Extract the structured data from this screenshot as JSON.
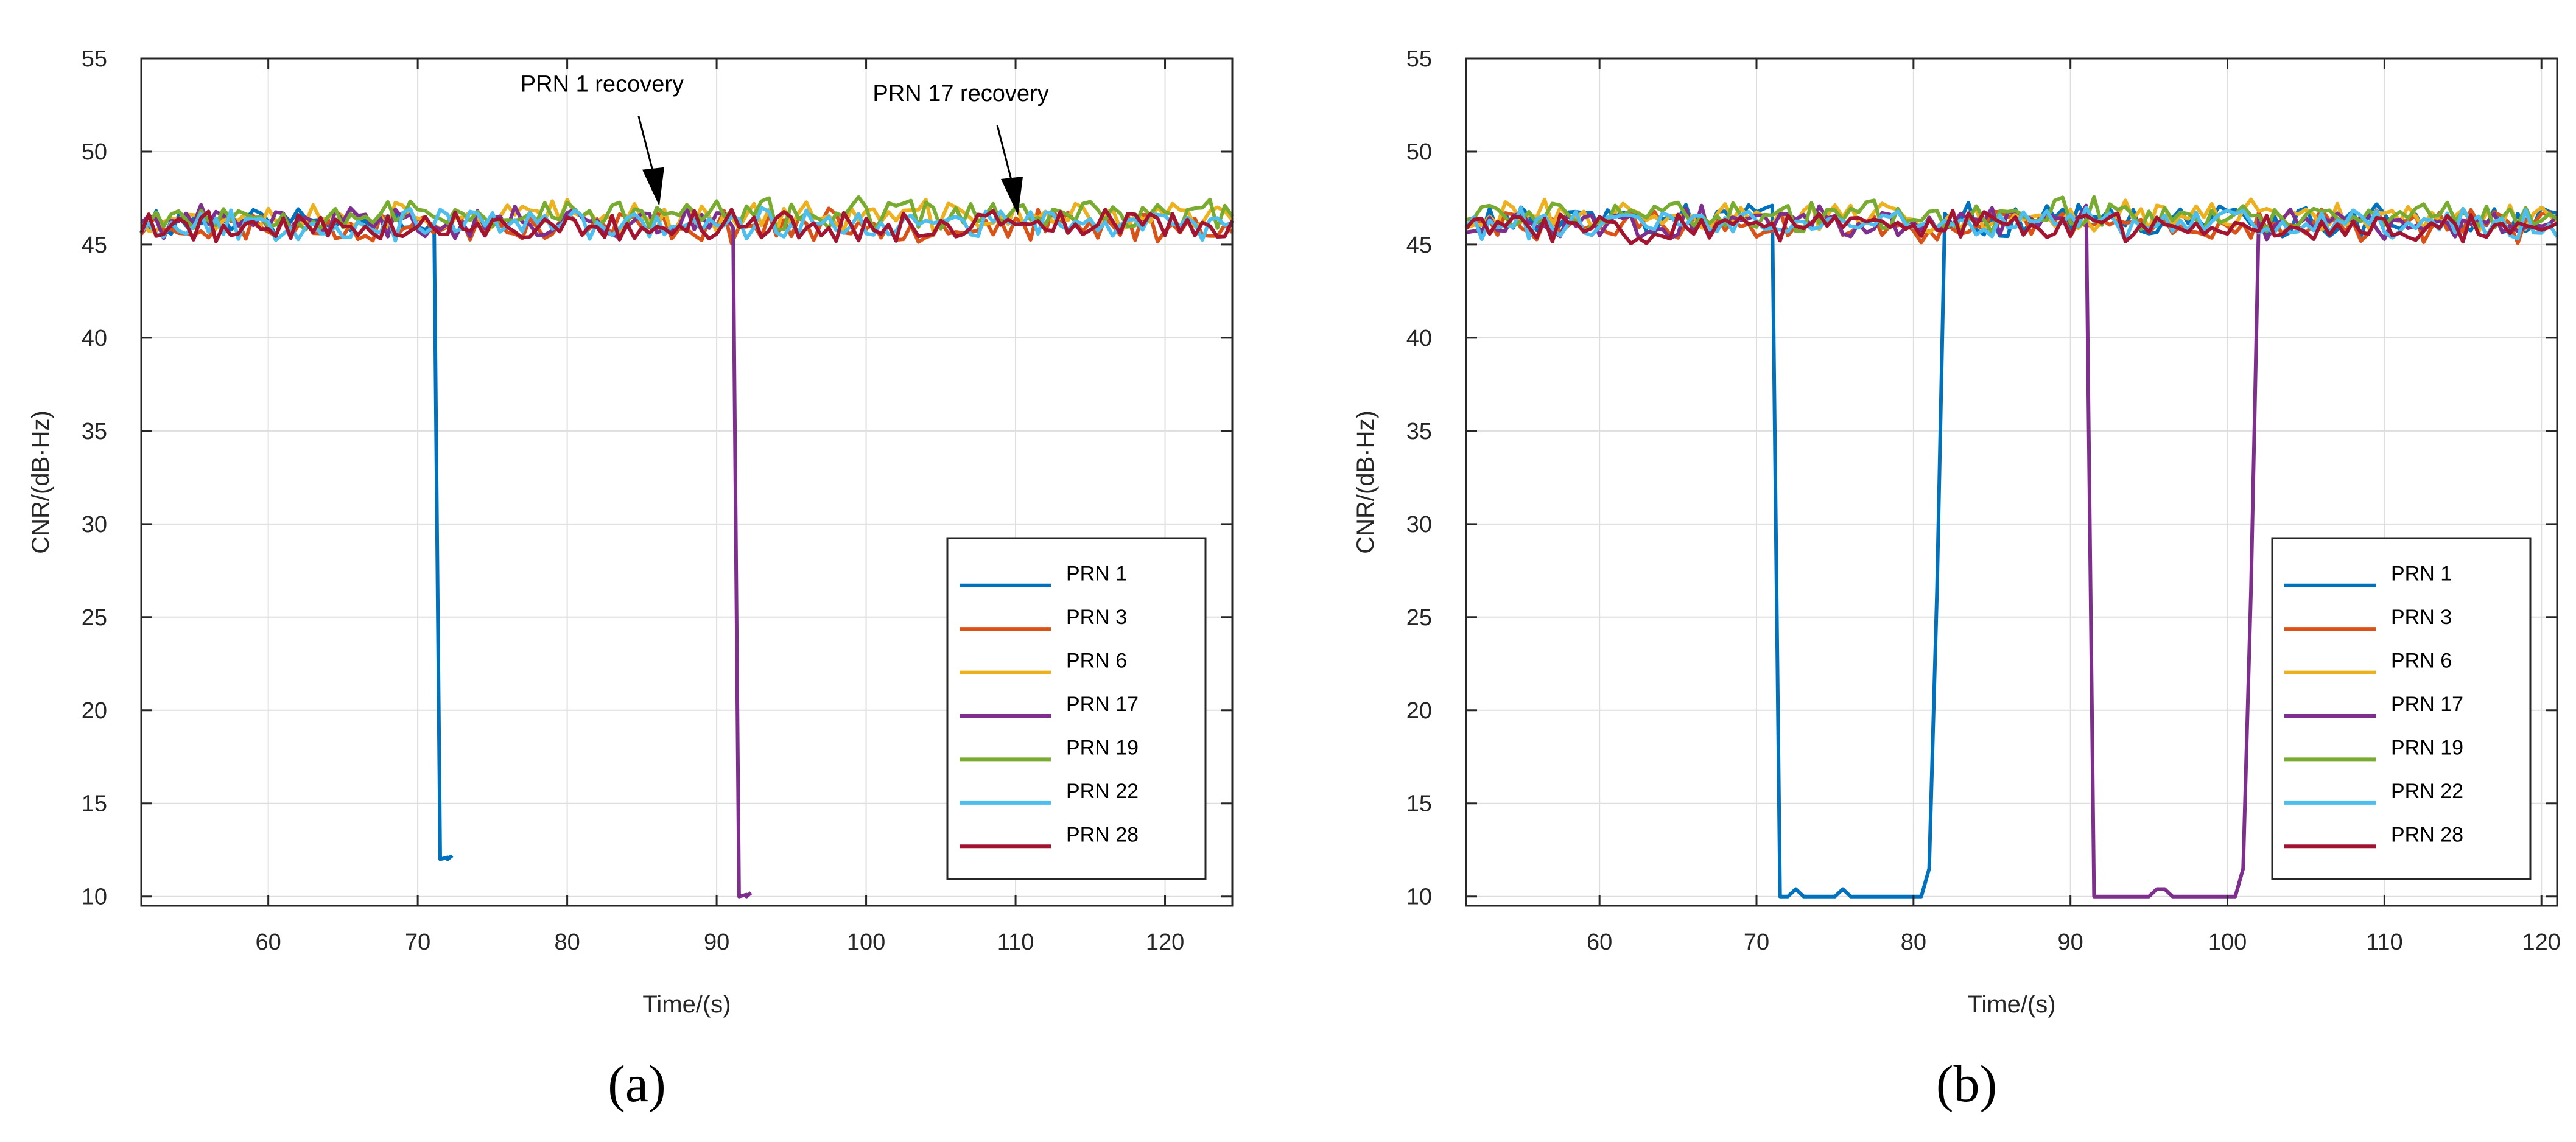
{
  "captions": [
    "(a)",
    "(b)"
  ],
  "chart_data": [
    {
      "type": "line",
      "panel": "(a)",
      "xlabel": "Time/(s)",
      "ylabel": "CNR/(dB·Hz)",
      "xlim": [
        51.5,
        124.5
      ],
      "ylim": [
        9.5,
        55
      ],
      "xticks": [
        60,
        70,
        80,
        90,
        100,
        110,
        120
      ],
      "yticks": [
        10,
        15,
        20,
        25,
        30,
        35,
        40,
        45,
        50,
        55
      ],
      "grid": true,
      "legend_position": "bottom-right",
      "annotations": [
        {
          "text": "PRN 1 recovery",
          "x": 86,
          "y": 47
        },
        {
          "text": "PRN 17 recovery",
          "x": 110,
          "y": 46.5
        }
      ],
      "series": [
        {
          "name": "PRN 1",
          "color": "#0072BD",
          "base": 46.3,
          "seed": 11,
          "events": [
            {
              "down": 71,
              "bottom": 12,
              "end": 72
            }
          ]
        },
        {
          "name": "PRN 3",
          "color": "#D95319",
          "base": 46.0,
          "seed": 23
        },
        {
          "name": "PRN 6",
          "color": "#EDB120",
          "base": 46.5,
          "seed": 37
        },
        {
          "name": "PRN 17",
          "color": "#7E2F8E",
          "base": 46.2,
          "seed": 41,
          "events": [
            {
              "down": 91,
              "bottom": 10,
              "end": 92
            }
          ]
        },
        {
          "name": "PRN 19",
          "color": "#77AC30",
          "base": 46.6,
          "seed": 53
        },
        {
          "name": "PRN 22",
          "color": "#4DBEEE",
          "base": 46.1,
          "seed": 67
        },
        {
          "name": "PRN 28",
          "color": "#A2142F",
          "base": 46.0,
          "seed": 79
        }
      ]
    },
    {
      "type": "line",
      "panel": "(b)",
      "xlabel": "Time/(s)",
      "ylabel": "CNR/(dB·Hz)",
      "xlim": [
        51.5,
        121
      ],
      "ylim": [
        9.5,
        55
      ],
      "xticks": [
        60,
        70,
        80,
        90,
        100,
        110,
        120
      ],
      "yticks": [
        10,
        15,
        20,
        25,
        30,
        35,
        40,
        45,
        50,
        55
      ],
      "grid": true,
      "legend_position": "bottom-right",
      "annotations": [],
      "series": [
        {
          "name": "PRN 1",
          "color": "#0072BD",
          "base": 46.3,
          "seed": 13,
          "events": [
            {
              "down": 71,
              "bottom": 10,
              "up": 81,
              "recover": 82
            }
          ]
        },
        {
          "name": "PRN 3",
          "color": "#D95319",
          "base": 46.0,
          "seed": 29
        },
        {
          "name": "PRN 6",
          "color": "#EDB120",
          "base": 46.5,
          "seed": 31
        },
        {
          "name": "PRN 17",
          "color": "#7E2F8E",
          "base": 46.2,
          "seed": 43,
          "events": [
            {
              "down": 91,
              "bottom": 10,
              "up": 101,
              "recover": 102
            }
          ]
        },
        {
          "name": "PRN 19",
          "color": "#77AC30",
          "base": 46.6,
          "seed": 59
        },
        {
          "name": "PRN 22",
          "color": "#4DBEEE",
          "base": 46.1,
          "seed": 61
        },
        {
          "name": "PRN 28",
          "color": "#A2142F",
          "base": 46.0,
          "seed": 83
        }
      ]
    }
  ]
}
